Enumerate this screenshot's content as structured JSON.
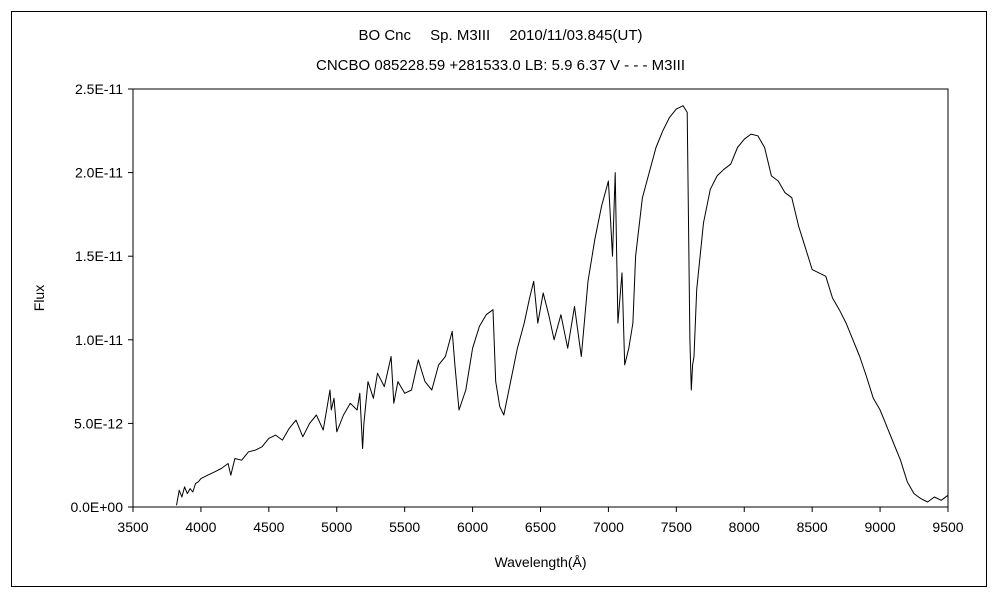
{
  "chart_data": {
    "type": "line",
    "title": "BO Cnc　 Sp. M3III　 2010/11/03.845(UT)",
    "subtitle": "CNCBO 085228.59 +281533.0 LB: 5.9 6.37 V - - - M3III",
    "xlabel": "Wavelength(Å)",
    "ylabel": "Flux",
    "xlim": [
      3500,
      9500
    ],
    "ylim": [
      0,
      2.5e-11
    ],
    "grid": false,
    "x_ticks": [
      3500,
      4000,
      4500,
      5000,
      5500,
      6000,
      6500,
      7000,
      7500,
      8000,
      8500,
      9000,
      9500
    ],
    "x_tick_labels": [
      "3500",
      "4000",
      "4500",
      "5000",
      "5500",
      "6000",
      "6500",
      "7000",
      "7500",
      "8000",
      "8500",
      "9000",
      "9500"
    ],
    "y_ticks": [
      0,
      5e-12,
      1e-11,
      1.5e-11,
      2e-11,
      2.5e-11
    ],
    "y_tick_labels": [
      "0.0E+00",
      "5.0E-12",
      "1.0E-11",
      "1.5E-11",
      "2.0E-11",
      "2.5E-11"
    ],
    "series": [
      {
        "color": "#000000",
        "x": [
          3820,
          3840,
          3860,
          3880,
          3900,
          3920,
          3940,
          3960,
          3980,
          4000,
          4050,
          4100,
          4150,
          4200,
          4220,
          4250,
          4300,
          4350,
          4400,
          4450,
          4500,
          4550,
          4600,
          4650,
          4700,
          4750,
          4800,
          4850,
          4900,
          4950,
          4960,
          4980,
          5000,
          5050,
          5100,
          5150,
          5170,
          5190,
          5200,
          5230,
          5270,
          5300,
          5350,
          5400,
          5420,
          5450,
          5500,
          5550,
          5600,
          5650,
          5700,
          5750,
          5800,
          5850,
          5870,
          5900,
          5950,
          6000,
          6050,
          6100,
          6150,
          6170,
          6200,
          6230,
          6280,
          6330,
          6380,
          6420,
          6450,
          6480,
          6520,
          6560,
          6600,
          6650,
          6700,
          6750,
          6800,
          6850,
          6900,
          6950,
          7000,
          7030,
          7050,
          7070,
          7100,
          7120,
          7150,
          7180,
          7200,
          7250,
          7300,
          7350,
          7400,
          7450,
          7500,
          7550,
          7580,
          7600,
          7610,
          7620,
          7630,
          7650,
          7700,
          7750,
          7800,
          7850,
          7900,
          7950,
          8000,
          8050,
          8100,
          8150,
          8200,
          8250,
          8300,
          8350,
          8400,
          8450,
          8500,
          8550,
          8600,
          8650,
          8700,
          8750,
          8800,
          8850,
          8900,
          8950,
          9000,
          9050,
          9100,
          9150,
          9200,
          9250,
          9300,
          9350,
          9400,
          9450,
          9500
        ],
        "y": [
          1e-13,
          1e-12,
          6e-13,
          1.2e-12,
          8e-13,
          1.1e-12,
          9e-13,
          1.4e-12,
          1.5e-12,
          1.7e-12,
          1.9e-12,
          2.1e-12,
          2.3e-12,
          2.6e-12,
          1.9e-12,
          2.9e-12,
          2.8e-12,
          3.3e-12,
          3.4e-12,
          3.6e-12,
          4.1e-12,
          4.3e-12,
          4e-12,
          4.7e-12,
          5.2e-12,
          4.2e-12,
          5e-12,
          5.5e-12,
          4.6e-12,
          7e-12,
          5.8e-12,
          6.5e-12,
          4.5e-12,
          5.5e-12,
          6.2e-12,
          5.8e-12,
          6.8e-12,
          3.5e-12,
          5e-12,
          7.5e-12,
          6.5e-12,
          8e-12,
          7.2e-12,
          9e-12,
          6.2e-12,
          7.5e-12,
          6.8e-12,
          7e-12,
          8.8e-12,
          7.5e-12,
          7e-12,
          8.5e-12,
          9e-12,
          1.05e-11,
          8.5e-12,
          5.8e-12,
          7e-12,
          9.5e-12,
          1.08e-11,
          1.15e-11,
          1.18e-11,
          7.5e-12,
          6e-12,
          5.5e-12,
          7.5e-12,
          9.5e-12,
          1.1e-11,
          1.25e-11,
          1.35e-11,
          1.1e-11,
          1.28e-11,
          1.15e-11,
          1e-11,
          1.15e-11,
          9.5e-12,
          1.2e-11,
          9e-12,
          1.35e-11,
          1.6e-11,
          1.8e-11,
          1.95e-11,
          1.5e-11,
          2e-11,
          1.1e-11,
          1.4e-11,
          8.5e-12,
          9.5e-12,
          1.1e-11,
          1.5e-11,
          1.85e-11,
          2e-11,
          2.15e-11,
          2.25e-11,
          2.33e-11,
          2.38e-11,
          2.4e-11,
          2.36e-11,
          1e-11,
          7e-12,
          8.5e-12,
          9e-12,
          1.3e-11,
          1.7e-11,
          1.9e-11,
          1.98e-11,
          2.02e-11,
          2.05e-11,
          2.15e-11,
          2.2e-11,
          2.23e-11,
          2.22e-11,
          2.15e-11,
          1.98e-11,
          1.95e-11,
          1.88e-11,
          1.85e-11,
          1.68e-11,
          1.55e-11,
          1.42e-11,
          1.4e-11,
          1.38e-11,
          1.25e-11,
          1.18e-11,
          1.1e-11,
          1e-11,
          9e-12,
          7.8e-12,
          6.5e-12,
          5.8e-12,
          4.8e-12,
          3.8e-12,
          2.8e-12,
          1.5e-12,
          8e-13,
          5e-13,
          3e-13,
          6e-13,
          4e-13,
          7e-13
        ]
      }
    ]
  }
}
